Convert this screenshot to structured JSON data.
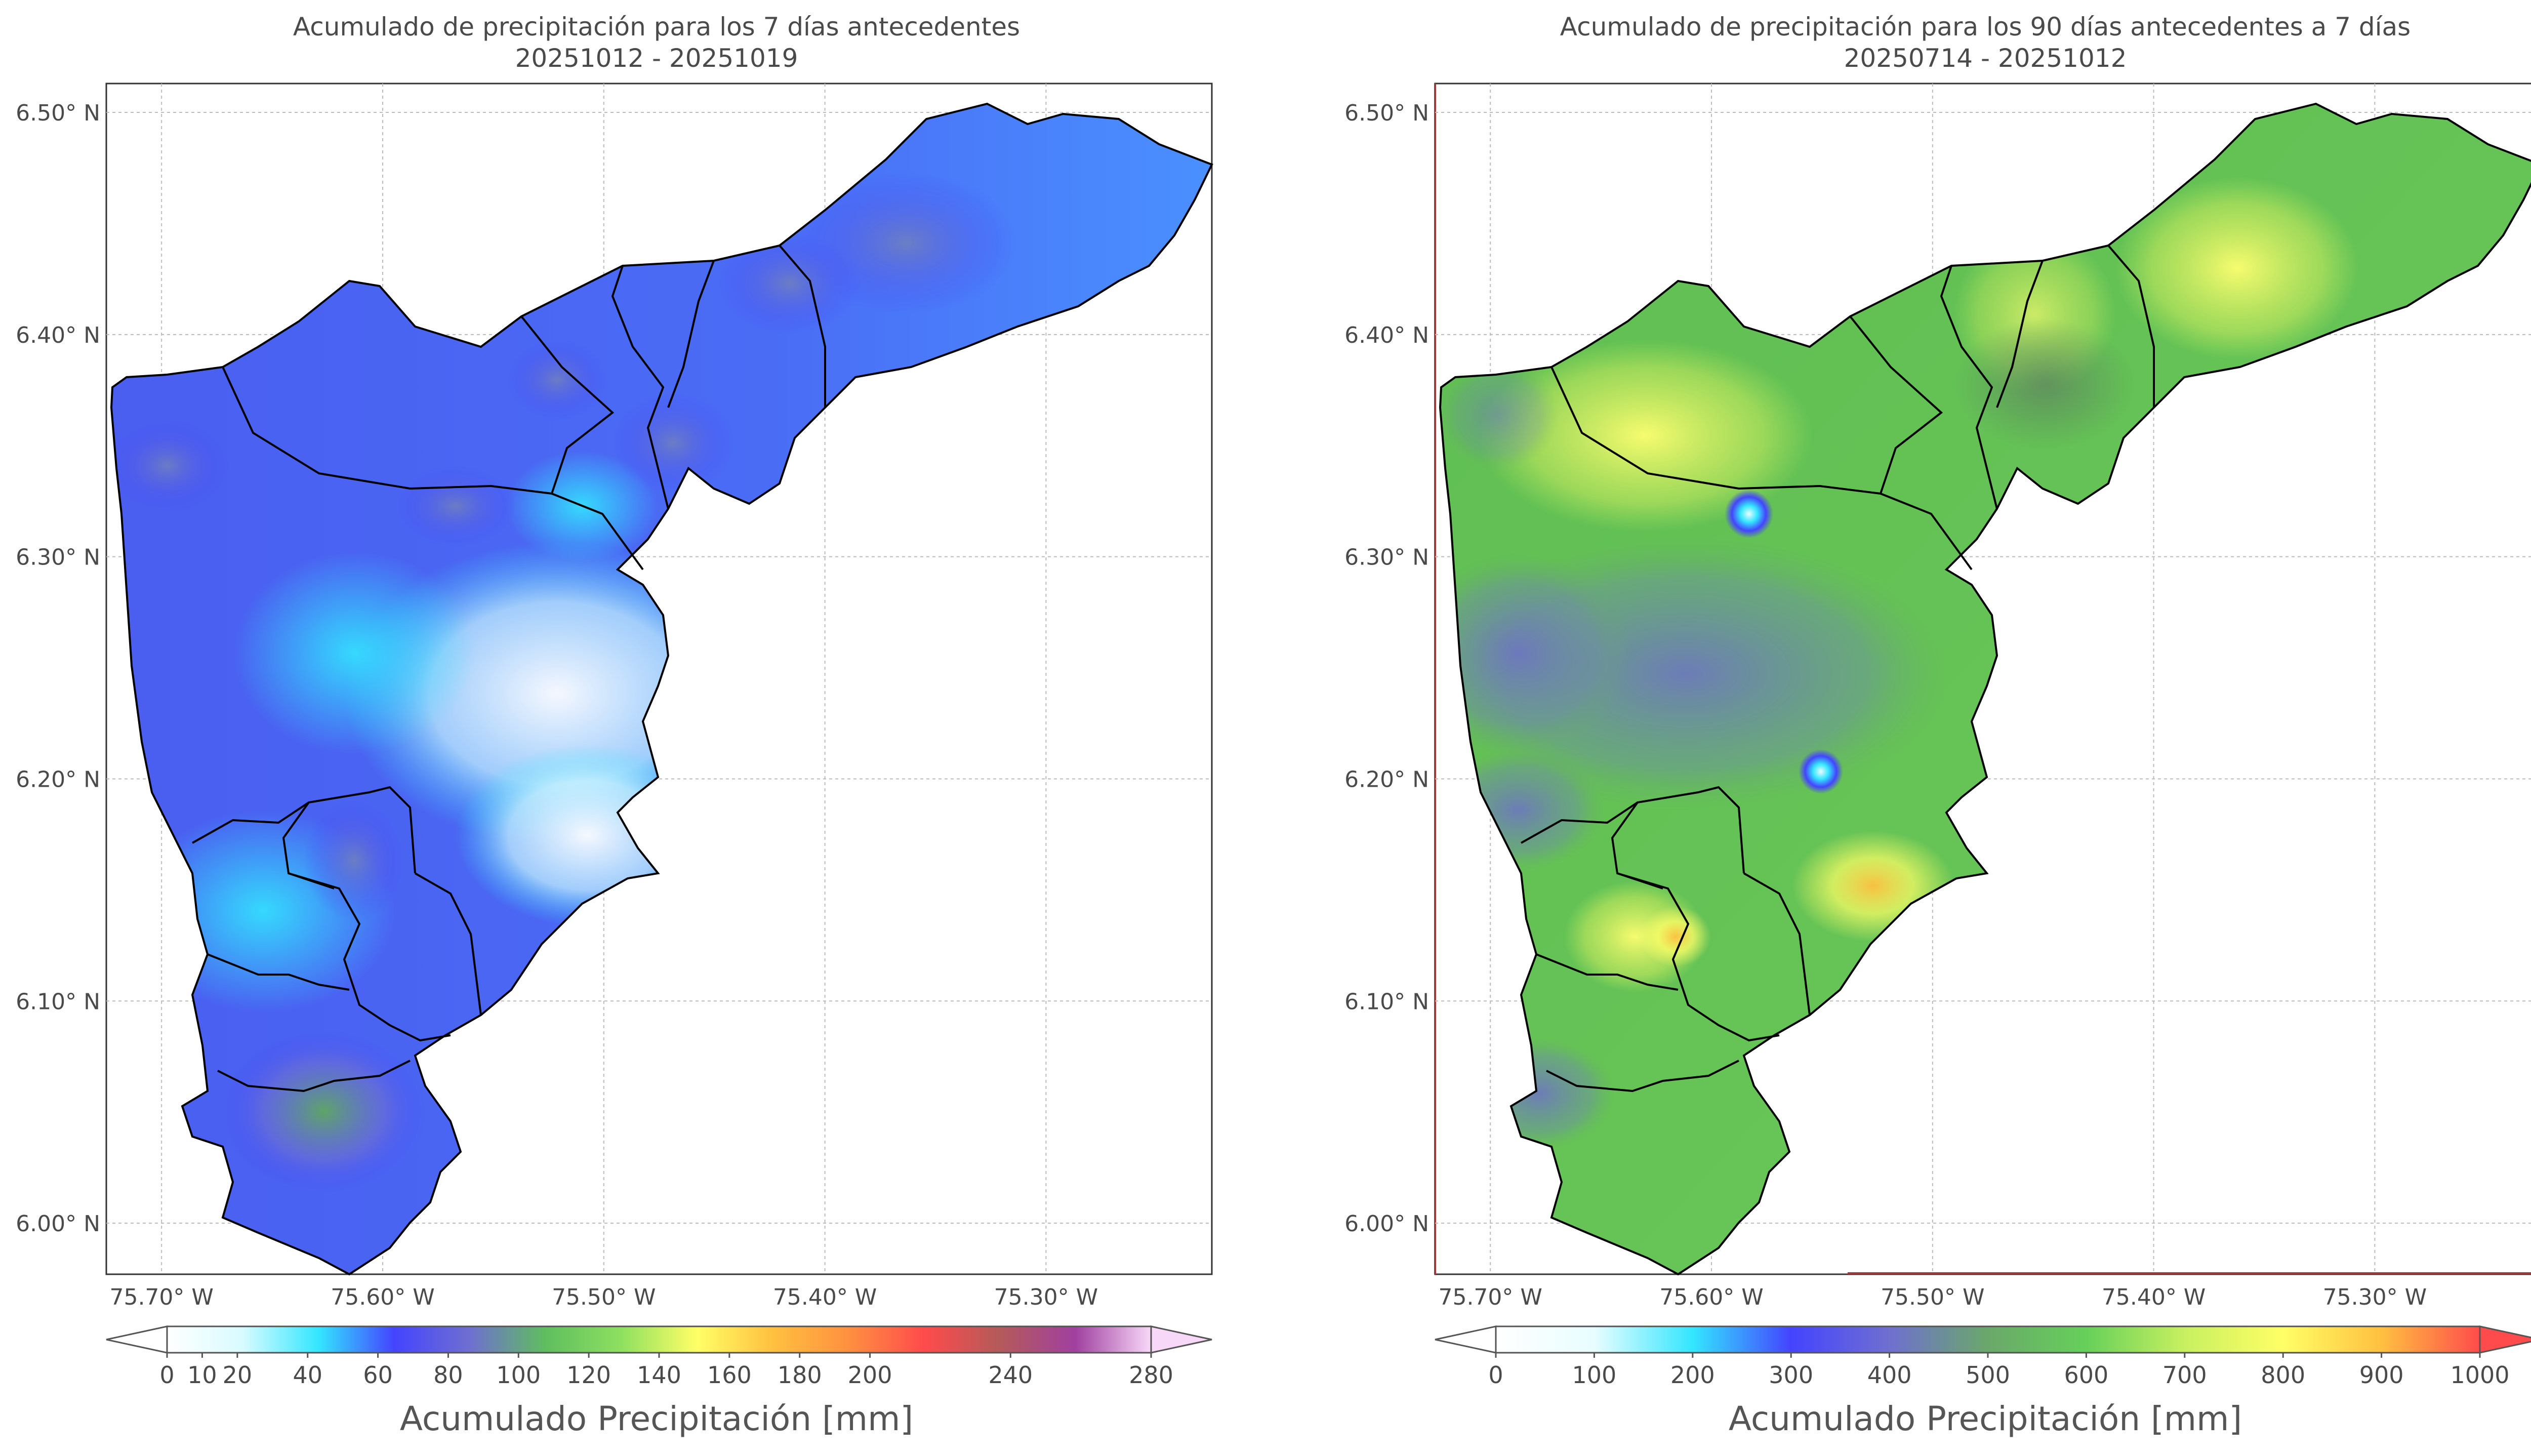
{
  "panels": [
    {
      "title_line1": "Acumulado de precipitación para los 7 días antecedentes",
      "title_line2": "20251012 - 20251019",
      "colorbar_label": "Acumulado Precipitación [mm]",
      "colorbar_ticks": [
        "0",
        "10",
        "20",
        "40",
        "60",
        "80",
        "100",
        "120",
        "140",
        "160",
        "180",
        "200",
        "240",
        "280"
      ],
      "colorbar_tick_values": [
        0,
        10,
        20,
        40,
        60,
        80,
        100,
        120,
        140,
        160,
        180,
        200,
        240,
        280
      ],
      "colorbar_range": [
        0,
        280
      ],
      "colorbar_extend": "both",
      "colorbar_colors": [
        "#ffffff",
        "#d8fbff",
        "#33e6ff",
        "#4444ff",
        "#6f6fd0",
        "#5fbe5f",
        "#8ee060",
        "#ffff66",
        "#ffc040",
        "#ff9040",
        "#ff4b4b",
        "#b45a5a",
        "#a040a0",
        "#f8d8f8"
      ],
      "dominant_field": "blue to cyan"
    },
    {
      "title_line1": "Acumulado de precipitación para los 90 días antecedentes a 7 días",
      "title_line2": "20250714 - 20251012",
      "colorbar_label": "Acumulado Precipitación [mm]",
      "colorbar_ticks": [
        "0",
        "100",
        "200",
        "300",
        "400",
        "500",
        "600",
        "700",
        "800",
        "900",
        "1000"
      ],
      "colorbar_tick_values": [
        0,
        100,
        200,
        300,
        400,
        500,
        600,
        700,
        800,
        900,
        1000
      ],
      "colorbar_range": [
        0,
        1000
      ],
      "colorbar_extend": "both",
      "colorbar_colors": [
        "#ffffff",
        "#e8fdff",
        "#33e6ff",
        "#4444ff",
        "#6f6fd0",
        "#6aa86a",
        "#66d05a",
        "#c8f060",
        "#ffff66",
        "#ffc040",
        "#ff4b4b"
      ],
      "dominant_field": "green to yellow"
    }
  ],
  "axes": {
    "x_ticks": [
      "75.70° W",
      "75.60° W",
      "75.50° W",
      "75.40° W",
      "75.30° W"
    ],
    "x_values": [
      -75.7,
      -75.6,
      -75.5,
      -75.4,
      -75.3
    ],
    "y_ticks": [
      "6.50° N",
      "6.40° N",
      "6.30° N",
      "6.20° N",
      "6.10° N",
      "6.00° N"
    ],
    "y_values": [
      6.5,
      6.4,
      6.3,
      6.2,
      6.1,
      6.0
    ],
    "lon_range": [
      -75.725,
      -75.225
    ],
    "lat_range": [
      5.977,
      6.513
    ],
    "grid": true
  }
}
